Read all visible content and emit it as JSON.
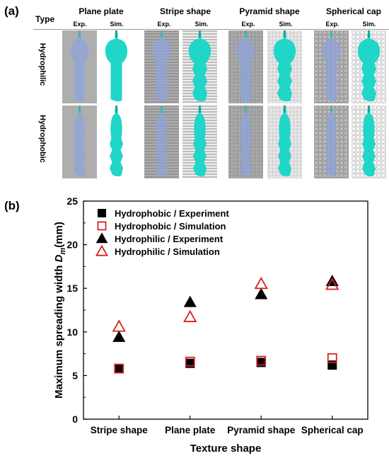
{
  "panel_a": {
    "label": "(a)",
    "type_header": "Type",
    "textures": [
      "Plane plate",
      "Stripe shape",
      "Pyramid shape",
      "Spherical cap"
    ],
    "sub_headers": [
      "Exp.",
      "Sim."
    ],
    "rows": [
      "Hydrophilic",
      "Hydrophobic"
    ],
    "colors": {
      "sim_fluid": "#1fd6c8",
      "exp_fluid": "#8ea4d8",
      "substrate": "#c9c9c9"
    }
  },
  "panel_b": {
    "label": "(b)"
  },
  "chart_data": {
    "type": "scatter",
    "xlabel": "Texture shape",
    "ylabel_main": "Maximum spreading width ",
    "ylabel_italic": "D",
    "ylabel_sub": "m",
    "ylabel_unit": "(mm)",
    "categories": [
      "Stripe shape",
      "Plane plate",
      "Pyramid shape",
      "Spherical cap"
    ],
    "ylim": [
      0,
      25
    ],
    "yticks": [
      0,
      5,
      10,
      15,
      20,
      25
    ],
    "legend_position": "top-left",
    "series": [
      {
        "name": "Hydrophobic / Experiment",
        "marker": "square",
        "filled": true,
        "color": "#000000",
        "values": [
          5.8,
          6.4,
          6.5,
          6.2
        ]
      },
      {
        "name": "Hydrophobic / Simulation",
        "marker": "square",
        "filled": false,
        "color": "#d9201f",
        "values": [
          5.8,
          6.6,
          6.7,
          7.0
        ]
      },
      {
        "name": "Hydrophilic / Experiment",
        "marker": "triangle",
        "filled": true,
        "color": "#000000",
        "values": [
          9.4,
          13.4,
          14.3,
          15.8
        ]
      },
      {
        "name": "Hydrophilic / Simulation",
        "marker": "triangle",
        "filled": false,
        "color": "#d9201f",
        "values": [
          10.6,
          11.7,
          15.5,
          15.4
        ]
      }
    ]
  }
}
